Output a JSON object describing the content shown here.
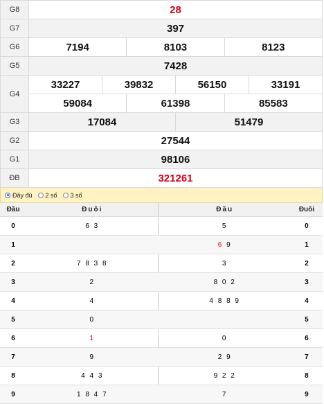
{
  "prizes": {
    "g8": {
      "label": "G8",
      "value": "28"
    },
    "g7": {
      "label": "G7",
      "value": "397"
    },
    "g6": {
      "label": "G6",
      "values": [
        "7194",
        "8103",
        "8123"
      ]
    },
    "g5": {
      "label": "G5",
      "value": "7428"
    },
    "g4": {
      "label": "G4",
      "row1": [
        "33227",
        "39832",
        "56150",
        "33191"
      ],
      "row2": [
        "59084",
        "61398",
        "85583"
      ]
    },
    "g3": {
      "label": "G3",
      "values": [
        "17084",
        "51479"
      ]
    },
    "g2": {
      "label": "G2",
      "value": "27544"
    },
    "g1": {
      "label": "G1",
      "value": "98106"
    },
    "db": {
      "label": "ĐB",
      "value": "321261"
    }
  },
  "options": {
    "full": "Đầy đủ",
    "two": "2 số",
    "three": "3 số",
    "selected": "full"
  },
  "headtail": {
    "headers": {
      "dau": "Đầu",
      "duoi": "Đuôi",
      "dau2": "Đầu",
      "duoi2": "Đuôi"
    },
    "rows": [
      {
        "d": "0",
        "tails": "6 3",
        "heads": "5",
        "d2": "0"
      },
      {
        "d": "1",
        "tails": "",
        "heads": "9",
        "heads_hl": "6",
        "d2": "1"
      },
      {
        "d": "2",
        "tails": "7 8 3 8",
        "heads": "3",
        "d2": "2"
      },
      {
        "d": "3",
        "tails": "2",
        "heads": "8 0 2",
        "d2": "3"
      },
      {
        "d": "4",
        "tails": "4",
        "heads": "4 8 8 9",
        "d2": "4"
      },
      {
        "d": "5",
        "tails": "0",
        "heads": "",
        "d2": "5"
      },
      {
        "d": "6",
        "tails_hl": "1",
        "tails": "",
        "heads": "0",
        "d2": "6"
      },
      {
        "d": "7",
        "tails": "9",
        "heads": "2 9",
        "d2": "7"
      },
      {
        "d": "8",
        "tails": "4 4 3",
        "heads": "9 2 2",
        "d2": "8"
      },
      {
        "d": "9",
        "tails": "1 8 4 7",
        "heads": "7",
        "d2": "9"
      }
    ]
  },
  "colors": {
    "special": "#d0021b",
    "option_bar": "#fff3c4"
  }
}
